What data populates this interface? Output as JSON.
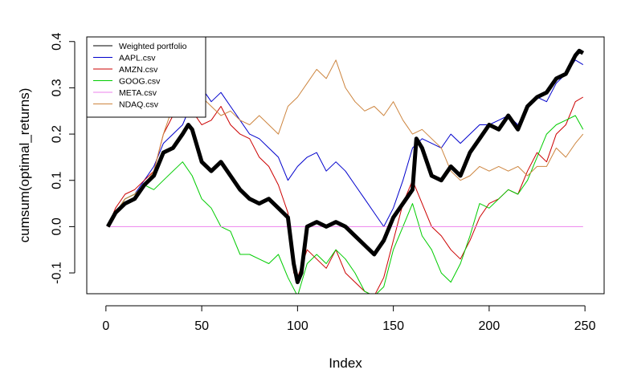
{
  "chart_data": {
    "type": "line",
    "title": "",
    "xlabel": "Index",
    "ylabel": "cumsum(optimal_returns)",
    "xlim": [
      -10,
      260
    ],
    "ylim": [
      -0.145,
      0.41
    ],
    "xticks": [
      0,
      50,
      100,
      150,
      200,
      250
    ],
    "yticks": [
      -0.1,
      0.0,
      0.1,
      0.2,
      0.3,
      0.4
    ],
    "ytick_labels": [
      "-0.1",
      "0.0",
      "0.1",
      "0.2",
      "0.3",
      "0.4"
    ],
    "grid": false,
    "legend_position": "top-left",
    "series": [
      {
        "name": "Weighted portfolio",
        "color": "#000000",
        "bold": true,
        "x": [
          1,
          5,
          10,
          15,
          20,
          25,
          30,
          35,
          40,
          43,
          45,
          50,
          55,
          60,
          65,
          70,
          75,
          80,
          85,
          90,
          95,
          98,
          100,
          102,
          105,
          110,
          115,
          120,
          125,
          130,
          135,
          140,
          145,
          150,
          155,
          160,
          162,
          165,
          170,
          175,
          180,
          185,
          190,
          195,
          200,
          205,
          210,
          215,
          220,
          225,
          230,
          235,
          240,
          245,
          247,
          249
        ],
        "y": [
          0.0,
          0.03,
          0.05,
          0.06,
          0.09,
          0.11,
          0.16,
          0.17,
          0.2,
          0.22,
          0.21,
          0.14,
          0.12,
          0.14,
          0.11,
          0.08,
          0.06,
          0.05,
          0.06,
          0.04,
          0.02,
          -0.08,
          -0.12,
          -0.1,
          0.0,
          0.01,
          0.0,
          0.01,
          0.0,
          -0.02,
          -0.04,
          -0.06,
          -0.03,
          0.02,
          0.05,
          0.08,
          0.19,
          0.17,
          0.11,
          0.1,
          0.13,
          0.11,
          0.16,
          0.19,
          0.22,
          0.21,
          0.24,
          0.21,
          0.26,
          0.28,
          0.29,
          0.32,
          0.33,
          0.37,
          0.38,
          0.375
        ]
      },
      {
        "name": "AAPL.csv",
        "color": "#0000cc",
        "bold": false,
        "x": [
          1,
          5,
          10,
          15,
          20,
          25,
          30,
          35,
          40,
          45,
          50,
          55,
          60,
          65,
          70,
          75,
          80,
          85,
          90,
          95,
          100,
          105,
          110,
          115,
          120,
          125,
          130,
          135,
          140,
          145,
          150,
          155,
          160,
          165,
          170,
          175,
          180,
          185,
          190,
          195,
          200,
          205,
          210,
          215,
          220,
          225,
          230,
          235,
          240,
          245,
          249
        ],
        "y": [
          0.0,
          0.03,
          0.06,
          0.07,
          0.1,
          0.13,
          0.18,
          0.2,
          0.22,
          0.27,
          0.3,
          0.27,
          0.29,
          0.26,
          0.23,
          0.2,
          0.19,
          0.17,
          0.15,
          0.1,
          0.13,
          0.15,
          0.16,
          0.12,
          0.14,
          0.12,
          0.09,
          0.06,
          0.03,
          0.0,
          0.04,
          0.1,
          0.17,
          0.19,
          0.18,
          0.17,
          0.2,
          0.18,
          0.2,
          0.22,
          0.22,
          0.23,
          0.24,
          0.22,
          0.26,
          0.28,
          0.27,
          0.31,
          0.33,
          0.36,
          0.35
        ]
      },
      {
        "name": "AMZN.csv",
        "color": "#cc0000",
        "bold": false,
        "x": [
          1,
          5,
          10,
          15,
          20,
          25,
          30,
          35,
          40,
          45,
          50,
          55,
          60,
          65,
          70,
          75,
          80,
          85,
          90,
          95,
          98,
          100,
          105,
          110,
          115,
          120,
          125,
          130,
          135,
          140,
          145,
          150,
          155,
          160,
          165,
          170,
          175,
          180,
          185,
          190,
          195,
          200,
          205,
          210,
          215,
          220,
          225,
          230,
          235,
          240,
          245,
          249
        ],
        "y": [
          0.0,
          0.04,
          0.07,
          0.08,
          0.1,
          0.12,
          0.2,
          0.24,
          0.26,
          0.25,
          0.22,
          0.23,
          0.26,
          0.22,
          0.2,
          0.19,
          0.15,
          0.13,
          0.09,
          0.03,
          -0.1,
          -0.11,
          -0.05,
          -0.07,
          -0.09,
          -0.05,
          -0.1,
          -0.12,
          -0.14,
          -0.15,
          -0.11,
          -0.03,
          0.05,
          0.1,
          0.05,
          0.0,
          -0.02,
          -0.05,
          -0.07,
          -0.03,
          0.02,
          0.05,
          0.06,
          0.08,
          0.07,
          0.12,
          0.16,
          0.14,
          0.2,
          0.22,
          0.27,
          0.28
        ]
      },
      {
        "name": "GOOG.csv",
        "color": "#00cc00",
        "bold": false,
        "x": [
          1,
          5,
          10,
          15,
          20,
          25,
          30,
          35,
          40,
          45,
          50,
          55,
          60,
          65,
          70,
          75,
          80,
          85,
          90,
          95,
          100,
          105,
          110,
          115,
          120,
          125,
          130,
          135,
          140,
          145,
          150,
          155,
          160,
          165,
          170,
          175,
          180,
          185,
          190,
          195,
          200,
          205,
          210,
          215,
          220,
          225,
          230,
          235,
          240,
          245,
          249
        ],
        "y": [
          0.0,
          0.03,
          0.06,
          0.07,
          0.09,
          0.08,
          0.1,
          0.12,
          0.14,
          0.11,
          0.06,
          0.04,
          0.0,
          -0.01,
          -0.06,
          -0.06,
          -0.07,
          -0.08,
          -0.06,
          -0.11,
          -0.15,
          -0.08,
          -0.06,
          -0.08,
          -0.05,
          -0.07,
          -0.1,
          -0.14,
          -0.15,
          -0.13,
          -0.05,
          0.0,
          0.05,
          -0.02,
          -0.05,
          -0.1,
          -0.12,
          -0.08,
          -0.02,
          0.05,
          0.04,
          0.06,
          0.08,
          0.07,
          0.1,
          0.15,
          0.2,
          0.22,
          0.23,
          0.24,
          0.21
        ]
      },
      {
        "name": "META.csv",
        "color": "#ee82ee",
        "bold": false,
        "x": [
          1,
          249
        ],
        "y": [
          0.0,
          0.0
        ]
      },
      {
        "name": "NDAQ.csv",
        "color": "#cd853f",
        "bold": false,
        "x": [
          1,
          5,
          10,
          15,
          20,
          25,
          30,
          35,
          40,
          45,
          50,
          55,
          60,
          65,
          70,
          75,
          80,
          85,
          90,
          95,
          100,
          105,
          110,
          115,
          120,
          125,
          130,
          135,
          140,
          145,
          150,
          155,
          160,
          165,
          170,
          175,
          180,
          185,
          190,
          195,
          200,
          205,
          210,
          215,
          220,
          225,
          230,
          235,
          240,
          245,
          249
        ],
        "y": [
          0.0,
          0.03,
          0.06,
          0.07,
          0.09,
          0.12,
          0.2,
          0.26,
          0.27,
          0.29,
          0.28,
          0.26,
          0.24,
          0.25,
          0.23,
          0.22,
          0.24,
          0.22,
          0.2,
          0.26,
          0.28,
          0.31,
          0.34,
          0.32,
          0.36,
          0.3,
          0.27,
          0.25,
          0.26,
          0.24,
          0.27,
          0.23,
          0.2,
          0.21,
          0.19,
          0.17,
          0.12,
          0.1,
          0.11,
          0.13,
          0.12,
          0.13,
          0.12,
          0.13,
          0.11,
          0.13,
          0.13,
          0.17,
          0.15,
          0.18,
          0.2
        ]
      }
    ]
  }
}
